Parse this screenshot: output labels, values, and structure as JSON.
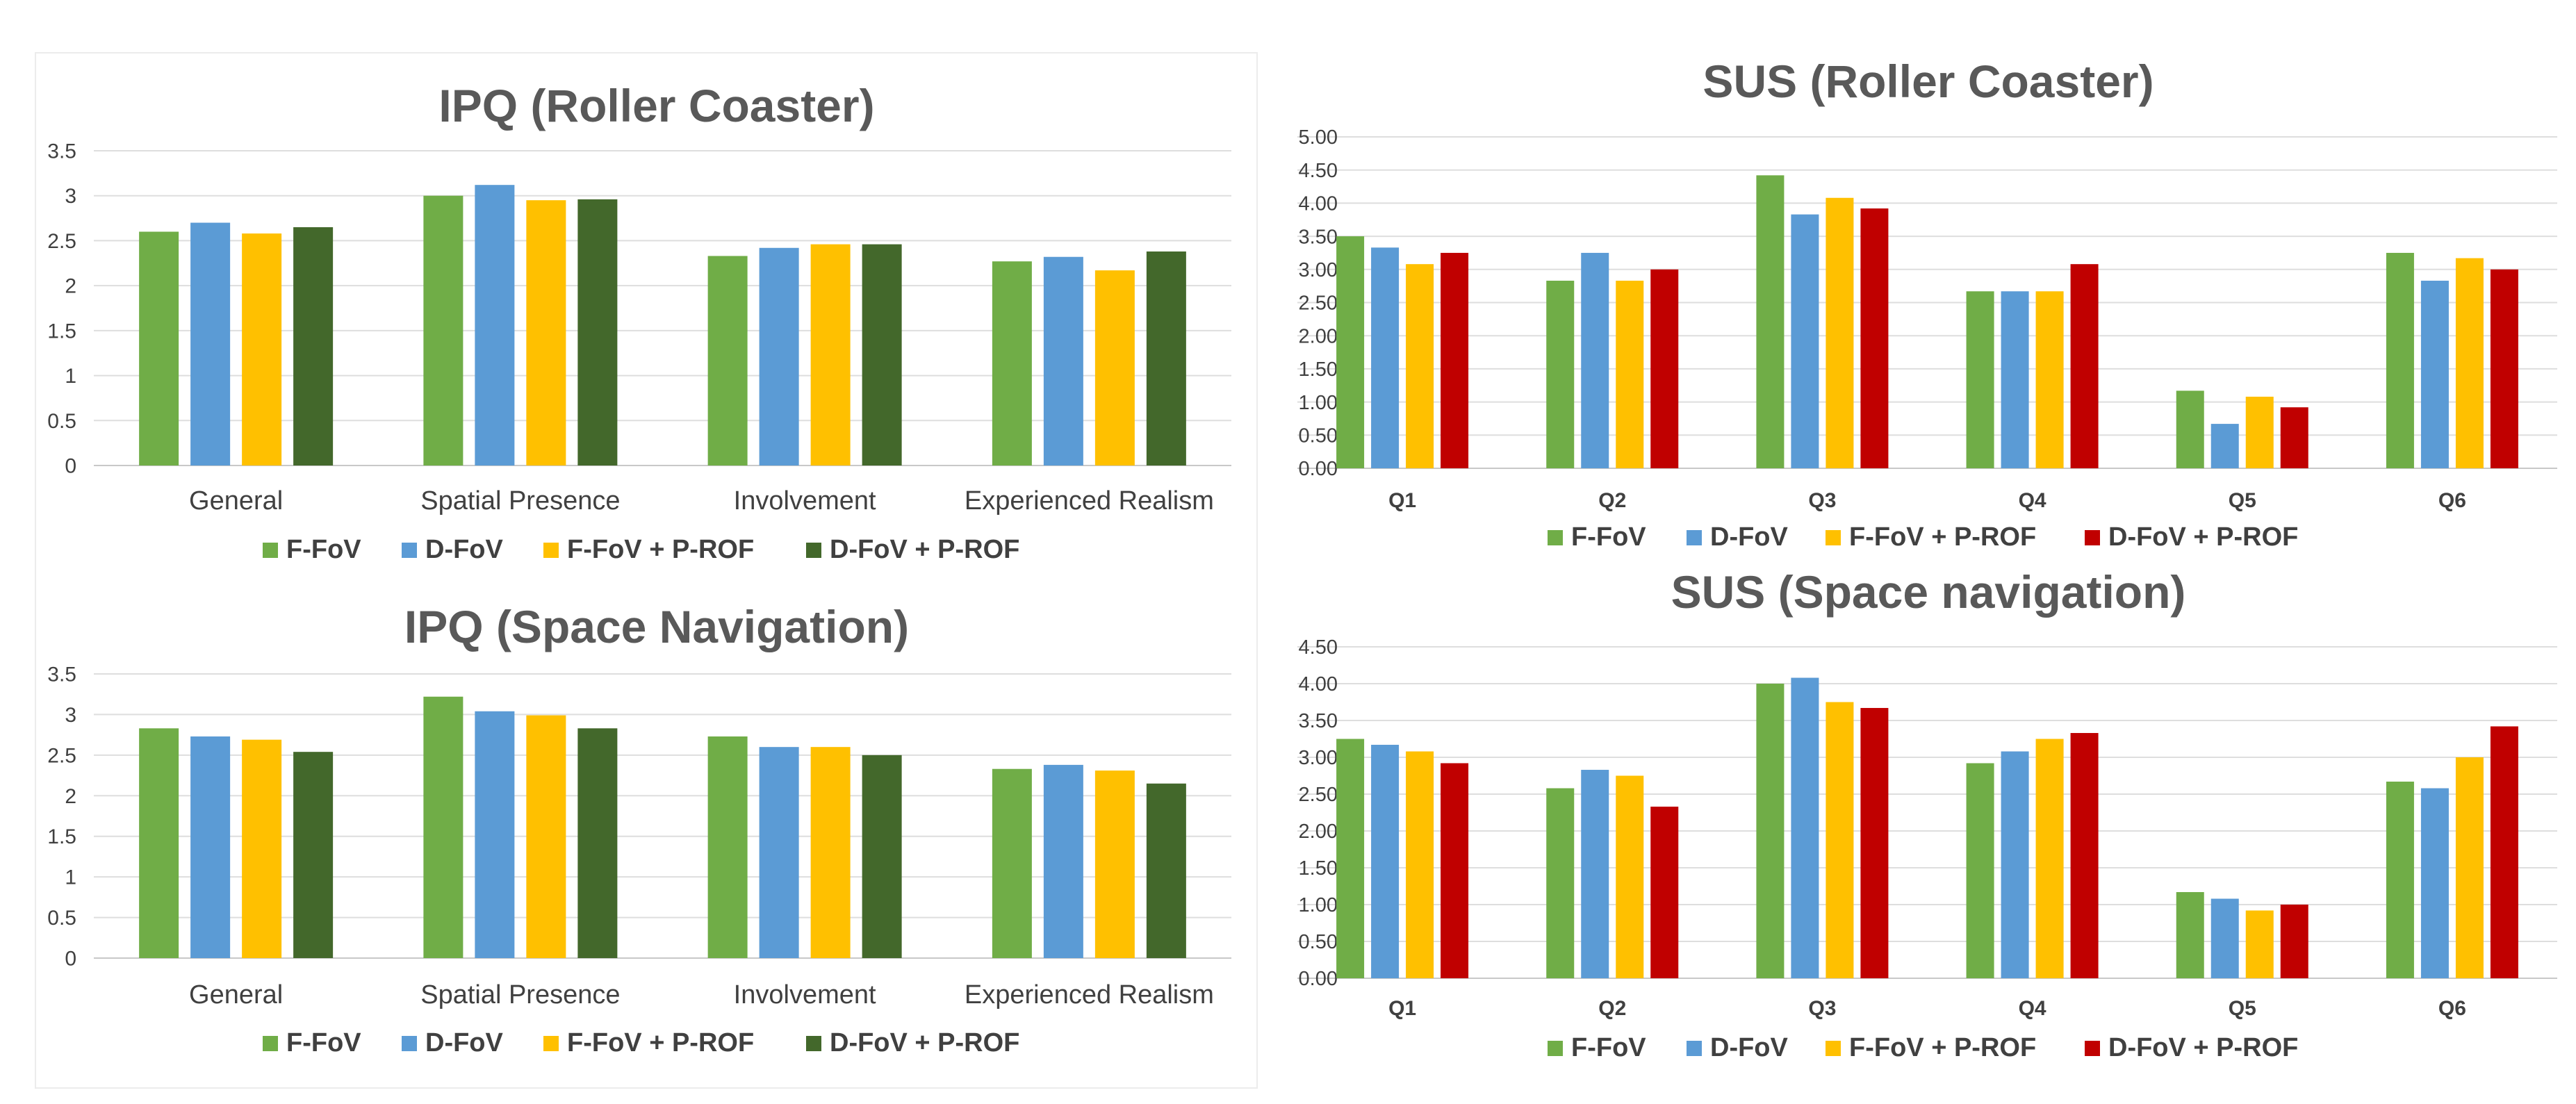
{
  "legend_labels": [
    "F-FoV",
    "D-FoV",
    "F-FoV + P-ROF",
    "D-FoV + P-ROF"
  ],
  "chart_data": [
    {
      "type": "bar",
      "title": "IPQ (Roller Coaster)",
      "categories": [
        "General",
        "Spatial Presence",
        "Involvement",
        "Experienced Realism"
      ],
      "ylim": [
        0,
        3.5
      ],
      "yticks": [
        "0",
        "0.5",
        "1",
        "1.5",
        "2",
        "2.5",
        "3",
        "3.5"
      ],
      "grid": true,
      "legend_position": "bottom",
      "series": [
        {
          "name": "F-FoV",
          "color": "#70ad47",
          "values": [
            2.6,
            3.0,
            2.33,
            2.27
          ]
        },
        {
          "name": "D-FoV",
          "color": "#5b9bd5",
          "values": [
            2.7,
            3.12,
            2.42,
            2.32
          ]
        },
        {
          "name": "F-FoV + P-ROF",
          "color": "#ffc000",
          "values": [
            2.58,
            2.95,
            2.46,
            2.17
          ]
        },
        {
          "name": "D-FoV + P-ROF",
          "color": "#43682b",
          "values": [
            2.65,
            2.96,
            2.46,
            2.38
          ]
        }
      ]
    },
    {
      "type": "bar",
      "title": "IPQ (Space Navigation)",
      "categories": [
        "General",
        "Spatial Presence",
        "Involvement",
        "Experienced Realism"
      ],
      "ylim": [
        0,
        3.5
      ],
      "yticks": [
        "0",
        "0.5",
        "1",
        "1.5",
        "2",
        "2.5",
        "3",
        "3.5"
      ],
      "grid": true,
      "legend_position": "bottom",
      "series": [
        {
          "name": "F-FoV",
          "color": "#70ad47",
          "values": [
            2.83,
            3.22,
            2.73,
            2.33
          ]
        },
        {
          "name": "D-FoV",
          "color": "#5b9bd5",
          "values": [
            2.73,
            3.04,
            2.6,
            2.38
          ]
        },
        {
          "name": "F-FoV + P-ROF",
          "color": "#ffc000",
          "values": [
            2.69,
            2.99,
            2.6,
            2.31
          ]
        },
        {
          "name": "D-FoV + P-ROF",
          "color": "#43682b",
          "values": [
            2.54,
            2.83,
            2.5,
            2.15
          ]
        }
      ]
    },
    {
      "type": "bar",
      "title": "SUS (Roller Coaster)",
      "categories": [
        "Q1",
        "Q2",
        "Q3",
        "Q4",
        "Q5",
        "Q6"
      ],
      "ylim": [
        0,
        5
      ],
      "yticks": [
        "0.00",
        "0.50",
        "1.00",
        "1.50",
        "2.00",
        "2.50",
        "3.00",
        "3.50",
        "4.00",
        "4.50",
        "5.00"
      ],
      "grid": true,
      "legend_position": "bottom",
      "series": [
        {
          "name": "F-FoV",
          "color": "#70ad47",
          "values": [
            3.5,
            2.83,
            4.42,
            2.67,
            1.17,
            3.25
          ]
        },
        {
          "name": "D-FoV",
          "color": "#5b9bd5",
          "values": [
            3.33,
            3.25,
            3.83,
            2.67,
            0.67,
            2.83
          ]
        },
        {
          "name": "F-FoV + P-ROF",
          "color": "#ffc000",
          "values": [
            3.08,
            2.83,
            4.08,
            2.67,
            1.08,
            3.17
          ]
        },
        {
          "name": "D-FoV + P-ROF",
          "color": "#c00000",
          "values": [
            3.25,
            3.0,
            3.92,
            3.08,
            0.92,
            3.0
          ]
        }
      ]
    },
    {
      "type": "bar",
      "title": "SUS (Space navigation)",
      "categories": [
        "Q1",
        "Q2",
        "Q3",
        "Q4",
        "Q5",
        "Q6"
      ],
      "ylim": [
        0,
        4.5
      ],
      "yticks": [
        "0.00",
        "0.50",
        "1.00",
        "1.50",
        "2.00",
        "2.50",
        "3.00",
        "3.50",
        "4.00",
        "4.50"
      ],
      "grid": true,
      "legend_position": "bottom",
      "series": [
        {
          "name": "F-FoV",
          "color": "#70ad47",
          "values": [
            3.25,
            2.58,
            4.0,
            2.92,
            1.17,
            2.67
          ]
        },
        {
          "name": "D-FoV",
          "color": "#5b9bd5",
          "values": [
            3.17,
            2.83,
            4.08,
            3.08,
            1.08,
            2.58
          ]
        },
        {
          "name": "F-FoV + P-ROF",
          "color": "#ffc000",
          "values": [
            3.08,
            2.75,
            3.75,
            3.25,
            0.92,
            3.0
          ]
        },
        {
          "name": "D-FoV + P-ROF",
          "color": "#c00000",
          "values": [
            2.92,
            2.33,
            3.67,
            3.33,
            1.0,
            3.42
          ]
        }
      ]
    }
  ]
}
